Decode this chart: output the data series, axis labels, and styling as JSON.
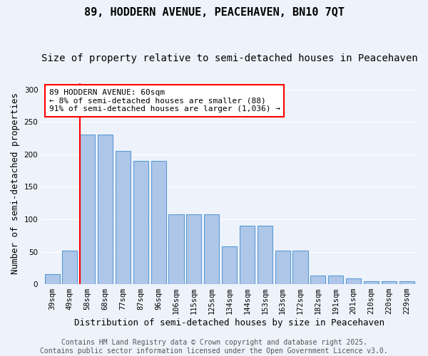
{
  "title1": "89, HODDERN AVENUE, PEACEHAVEN, BN10 7QT",
  "title2": "Size of property relative to semi-detached houses in Peacehaven",
  "xlabel": "Distribution of semi-detached houses by size in Peacehaven",
  "ylabel": "Number of semi-detached properties",
  "categories": [
    "39sqm",
    "49sqm",
    "58sqm",
    "68sqm",
    "77sqm",
    "87sqm",
    "96sqm",
    "106sqm",
    "115sqm",
    "125sqm",
    "134sqm",
    "144sqm",
    "153sqm",
    "163sqm",
    "172sqm",
    "182sqm",
    "191sqm",
    "201sqm",
    "210sqm",
    "220sqm",
    "229sqm"
  ],
  "values": [
    15,
    52,
    230,
    230,
    205,
    190,
    190,
    108,
    108,
    108,
    58,
    90,
    90,
    52,
    52,
    13,
    13,
    9,
    4,
    4,
    4
  ],
  "bar_color": "#aec6e8",
  "bar_edge_color": "#5b9bd5",
  "annotation_box_text": "89 HODDERN AVENUE: 60sqm\n← 8% of semi-detached houses are smaller (88)\n91% of semi-detached houses are larger (1,036) →",
  "annotation_box_color": "white",
  "annotation_box_edge_color": "red",
  "redline_bin_index": 2,
  "redline_color": "red",
  "bg_color": "#eef3fb",
  "grid_color": "white",
  "ylim": [
    0,
    310
  ],
  "footer1": "Contains HM Land Registry data © Crown copyright and database right 2025.",
  "footer2": "Contains public sector information licensed under the Open Government Licence v3.0.",
  "title1_fontsize": 11,
  "title2_fontsize": 10,
  "xlabel_fontsize": 9,
  "ylabel_fontsize": 9,
  "tick_fontsize": 7.5,
  "annotation_fontsize": 8,
  "footer_fontsize": 7
}
